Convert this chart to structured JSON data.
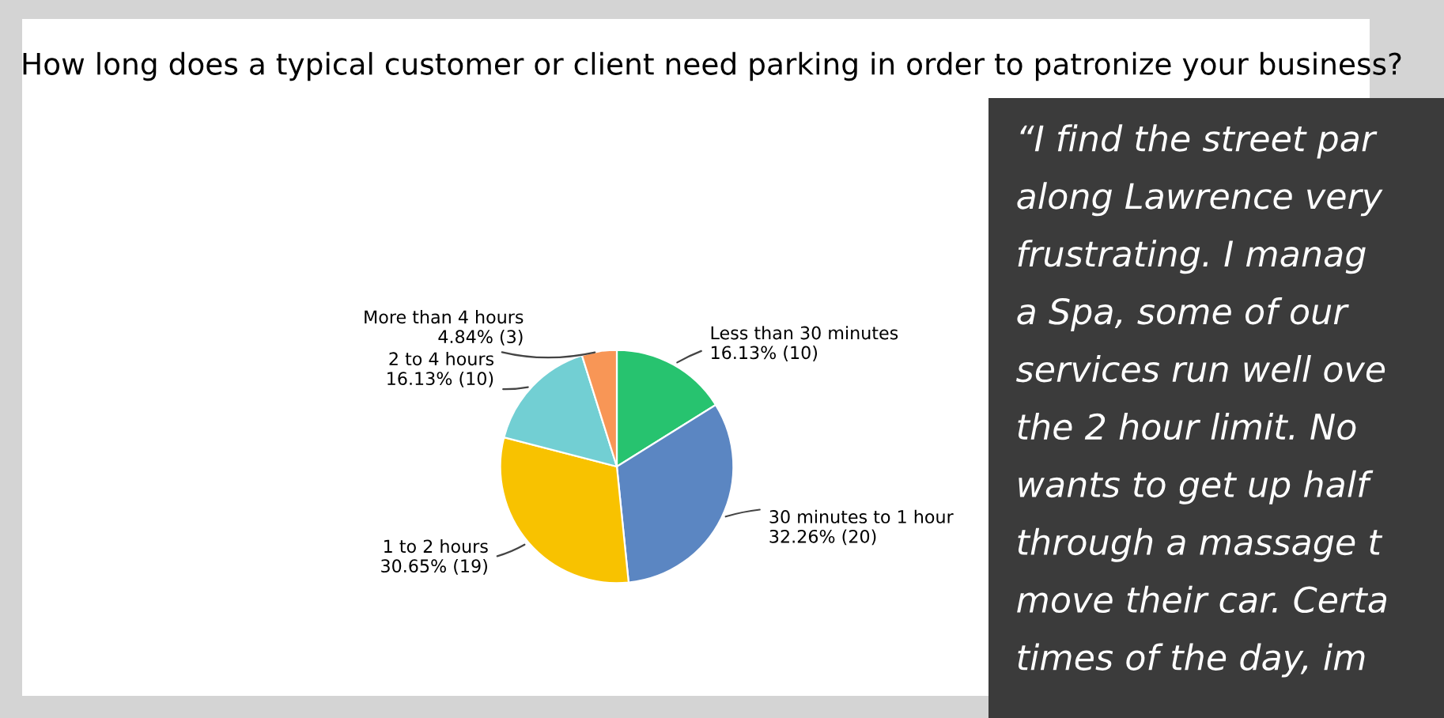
{
  "chart_data": [
    {
      "type": "pie",
      "title": "How long does a typical customer or client need parking in order to patronize your business?",
      "categories": [
        "Less than 30 minutes",
        "30 minutes to 1 hour",
        "1 to 2 hours",
        "2 to 4 hours",
        "More than 4 hours"
      ],
      "values": [
        16.13,
        32.26,
        30.65,
        16.13,
        4.84
      ],
      "value_labels": [
        "16.13% (10)",
        "32.26% (20)",
        "30.65% (19)",
        "16.13% (10)",
        "4.84% (3)"
      ],
      "colors": [
        "#27c36f",
        "#5b86c2",
        "#f8c200",
        "#72cfd3",
        "#f89656"
      ],
      "legend": false
    },
    {
      "type": "other",
      "annotations": [
        "“I find the street par",
        "along Lawrence very",
        "frustrating. I manag",
        "a Spa, some of our",
        "services run well ove",
        "the 2 hour limit. No",
        "wants to get up half",
        "through a massage t",
        "move their car. Certa",
        "times of the day, im"
      ]
    }
  ]
}
